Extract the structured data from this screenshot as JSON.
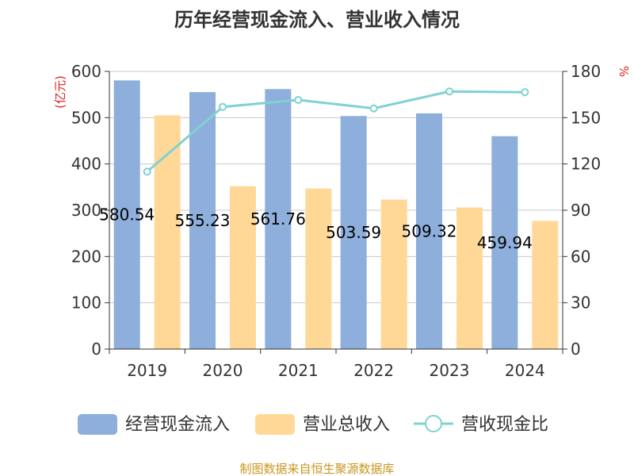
{
  "chart_data": {
    "type": "bar",
    "title": "历年经营现金流入、营业收入情况",
    "categories": [
      "2019",
      "2020",
      "2021",
      "2022",
      "2023",
      "2024"
    ],
    "series": [
      {
        "name": "经营现金流入",
        "kind": "bar",
        "axis": "left",
        "color": "#8eaedb",
        "values": [
          580.54,
          555.23,
          561.76,
          503.59,
          509.32,
          459.94
        ],
        "labels": [
          "580.54",
          "555.23",
          "561.76",
          "503.59",
          "509.32",
          "459.94"
        ]
      },
      {
        "name": "营业总收入",
        "kind": "bar",
        "axis": "left",
        "color": "#ffd898",
        "values": [
          505,
          352,
          347,
          323,
          306,
          277
        ]
      },
      {
        "name": "营收现金比",
        "kind": "line",
        "axis": "right",
        "color": "#7fd1d3",
        "values": [
          115,
          157,
          161.5,
          156,
          167,
          166.5
        ]
      }
    ],
    "yleft": {
      "unit": "(亿元)",
      "min": 0,
      "max": 600,
      "ticks": [
        "0",
        "100",
        "200",
        "300",
        "400",
        "500",
        "600"
      ]
    },
    "yright": {
      "unit": "%",
      "min": 0,
      "max": 180,
      "ticks": [
        "0",
        "30",
        "60",
        "90",
        "120",
        "150",
        "180"
      ]
    },
    "grid": true,
    "legend_position": "bottom"
  },
  "source": "制图数据来自恒生聚源数据库"
}
